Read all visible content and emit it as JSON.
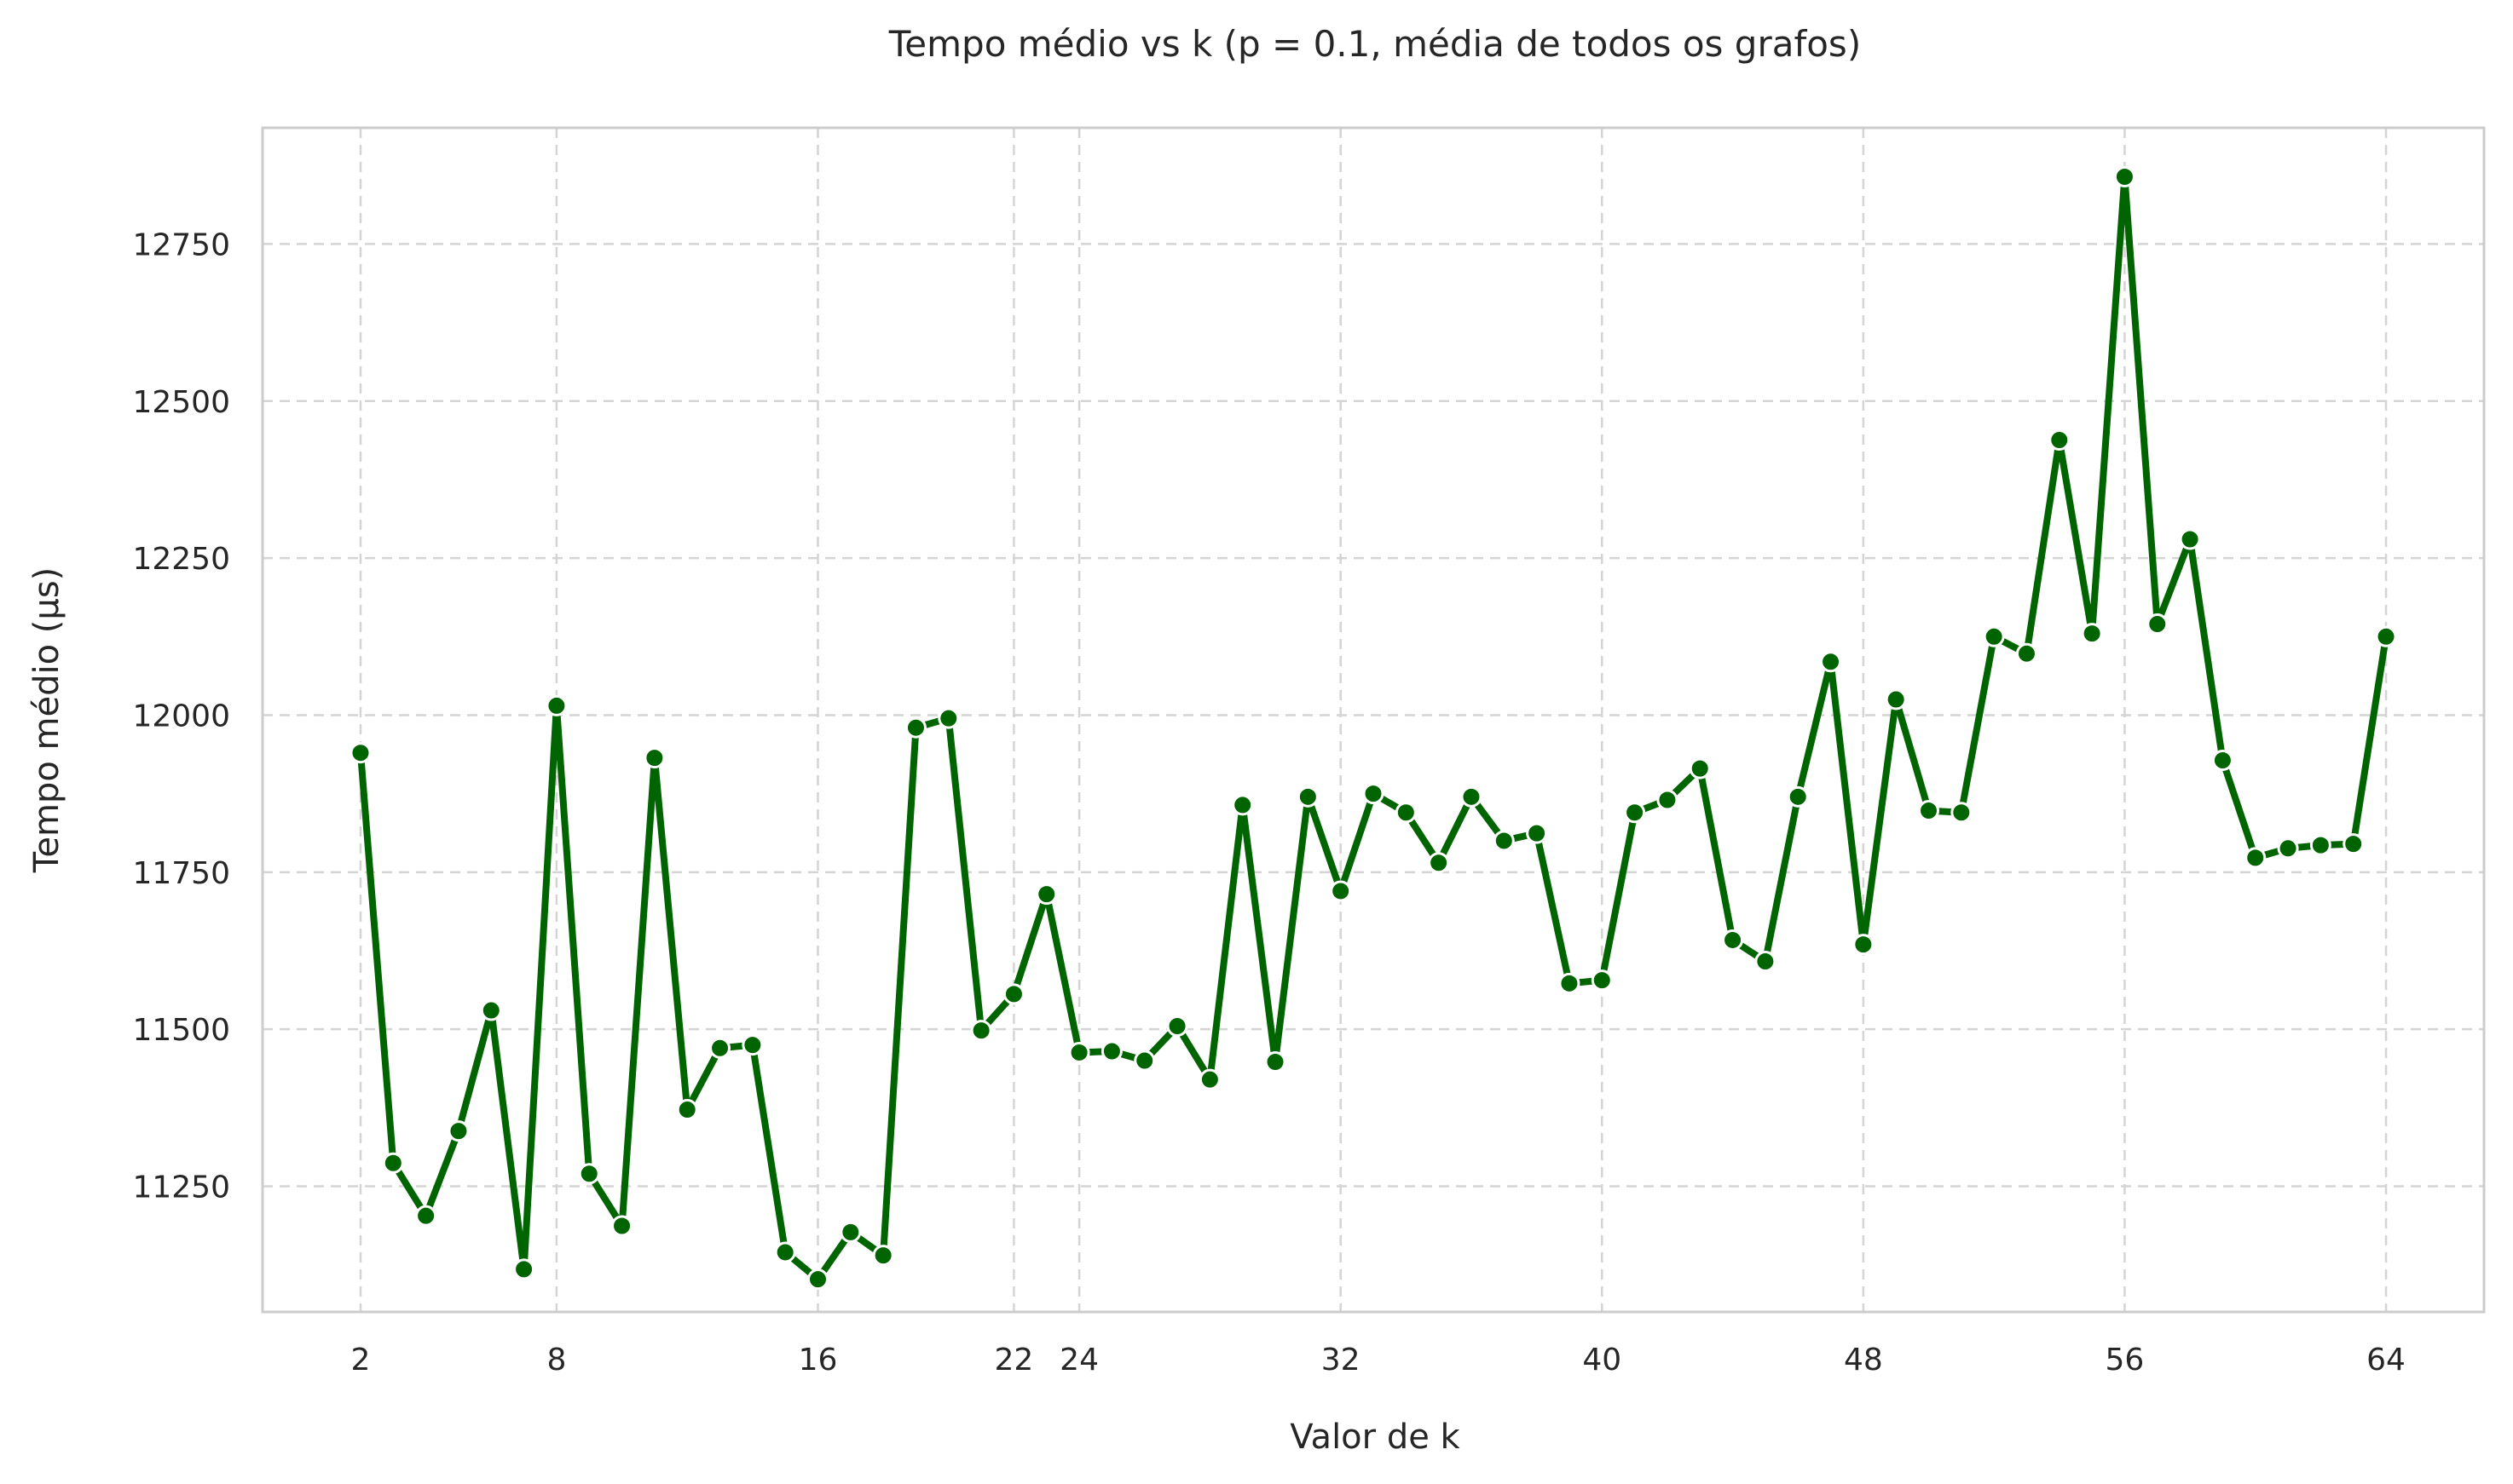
{
  "chart_data": {
    "type": "line",
    "title": "Tempo médio vs k (p = 0.1, média de todos os grafos)",
    "xlabel": "Valor de k",
    "ylabel": "Tempo médio (µs)",
    "xlim": [
      -1,
      67
    ],
    "ylim": [
      11050,
      12935
    ],
    "xticks": [
      2,
      8,
      16,
      22,
      24,
      32,
      40,
      48,
      56,
      64
    ],
    "yticks": [
      11250,
      11500,
      11750,
      12000,
      12250,
      12500,
      12750
    ],
    "grid": true,
    "color": "#006400",
    "x": [
      2,
      3,
      4,
      5,
      6,
      7,
      8,
      9,
      10,
      11,
      12,
      13,
      14,
      15,
      16,
      17,
      18,
      19,
      20,
      21,
      22,
      23,
      24,
      25,
      26,
      27,
      28,
      29,
      30,
      31,
      32,
      33,
      34,
      35,
      36,
      37,
      38,
      39,
      40,
      41,
      42,
      43,
      44,
      45,
      46,
      47,
      48,
      49,
      50,
      51,
      52,
      53,
      54,
      55,
      56,
      57,
      58,
      59,
      60,
      61,
      62,
      63,
      64
    ],
    "values": [
      11940,
      11287,
      11203,
      11338,
      11530,
      11118,
      12015,
      11270,
      11187,
      11932,
      11372,
      11470,
      11475,
      11145,
      11102,
      11177,
      11140,
      11980,
      11995,
      11498,
      11556,
      11715,
      11463,
      11465,
      11450,
      11505,
      11420,
      11857,
      11448,
      11870,
      11720,
      11875,
      11845,
      11765,
      11870,
      11800,
      11812,
      11573,
      11578,
      11845,
      11865,
      11915,
      11642,
      11608,
      11870,
      12085,
      11635,
      12025,
      11848,
      11845,
      12125,
      12098,
      12438,
      12130,
      12857,
      12145,
      12280,
      11928,
      11773,
      11788,
      11793,
      11795,
      12125
    ]
  }
}
